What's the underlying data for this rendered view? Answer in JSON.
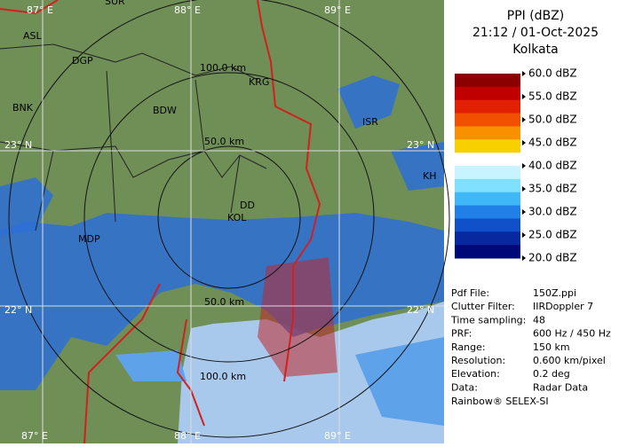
{
  "header": {
    "title": "PPI (dBZ)",
    "time": "21:12 / 01-Oct-2025",
    "station": "Kolkata"
  },
  "legend": {
    "labels": [
      "60.0 dBZ",
      "55.0 dBZ",
      "50.0 dBZ",
      "45.0 dBZ",
      "40.0 dBZ",
      "35.0 dBZ",
      "30.0 dBZ",
      "25.0 dBZ",
      "20.0 dBZ"
    ]
  },
  "info": {
    "rows": [
      [
        "Pdf File:",
        "150Z.ppi"
      ],
      [
        "Clutter Filter:",
        "IIRDoppler 7"
      ],
      [
        "Time sampling:",
        "48"
      ],
      [
        "PRF:",
        "600 Hz / 450 Hz"
      ],
      [
        "Range:",
        "150 km"
      ],
      [
        "Resolution:",
        "0.600 km/pixel"
      ],
      [
        "Elevation:",
        "0.2 deg"
      ],
      [
        "Data:",
        "Radar Data"
      ]
    ],
    "footer": "Rainbow® SELEX-SI"
  },
  "map": {
    "grid": {
      "top": [
        "87° E",
        "88° E",
        "89° E"
      ],
      "bottom": [
        "87° E",
        "88° E",
        "89° E"
      ],
      "left": [
        "23° N",
        "22° N"
      ],
      "right": [
        "23° N",
        "22° N"
      ]
    },
    "rings": [
      "100.0 km",
      "50.0 km",
      "50.0 km",
      "100.0 km"
    ],
    "places": [
      "SUR",
      "ASL",
      "DGP",
      "BNK",
      "BDW",
      "KRG",
      "ISR",
      "KH",
      "DD",
      "KOL",
      "MDP"
    ]
  }
}
